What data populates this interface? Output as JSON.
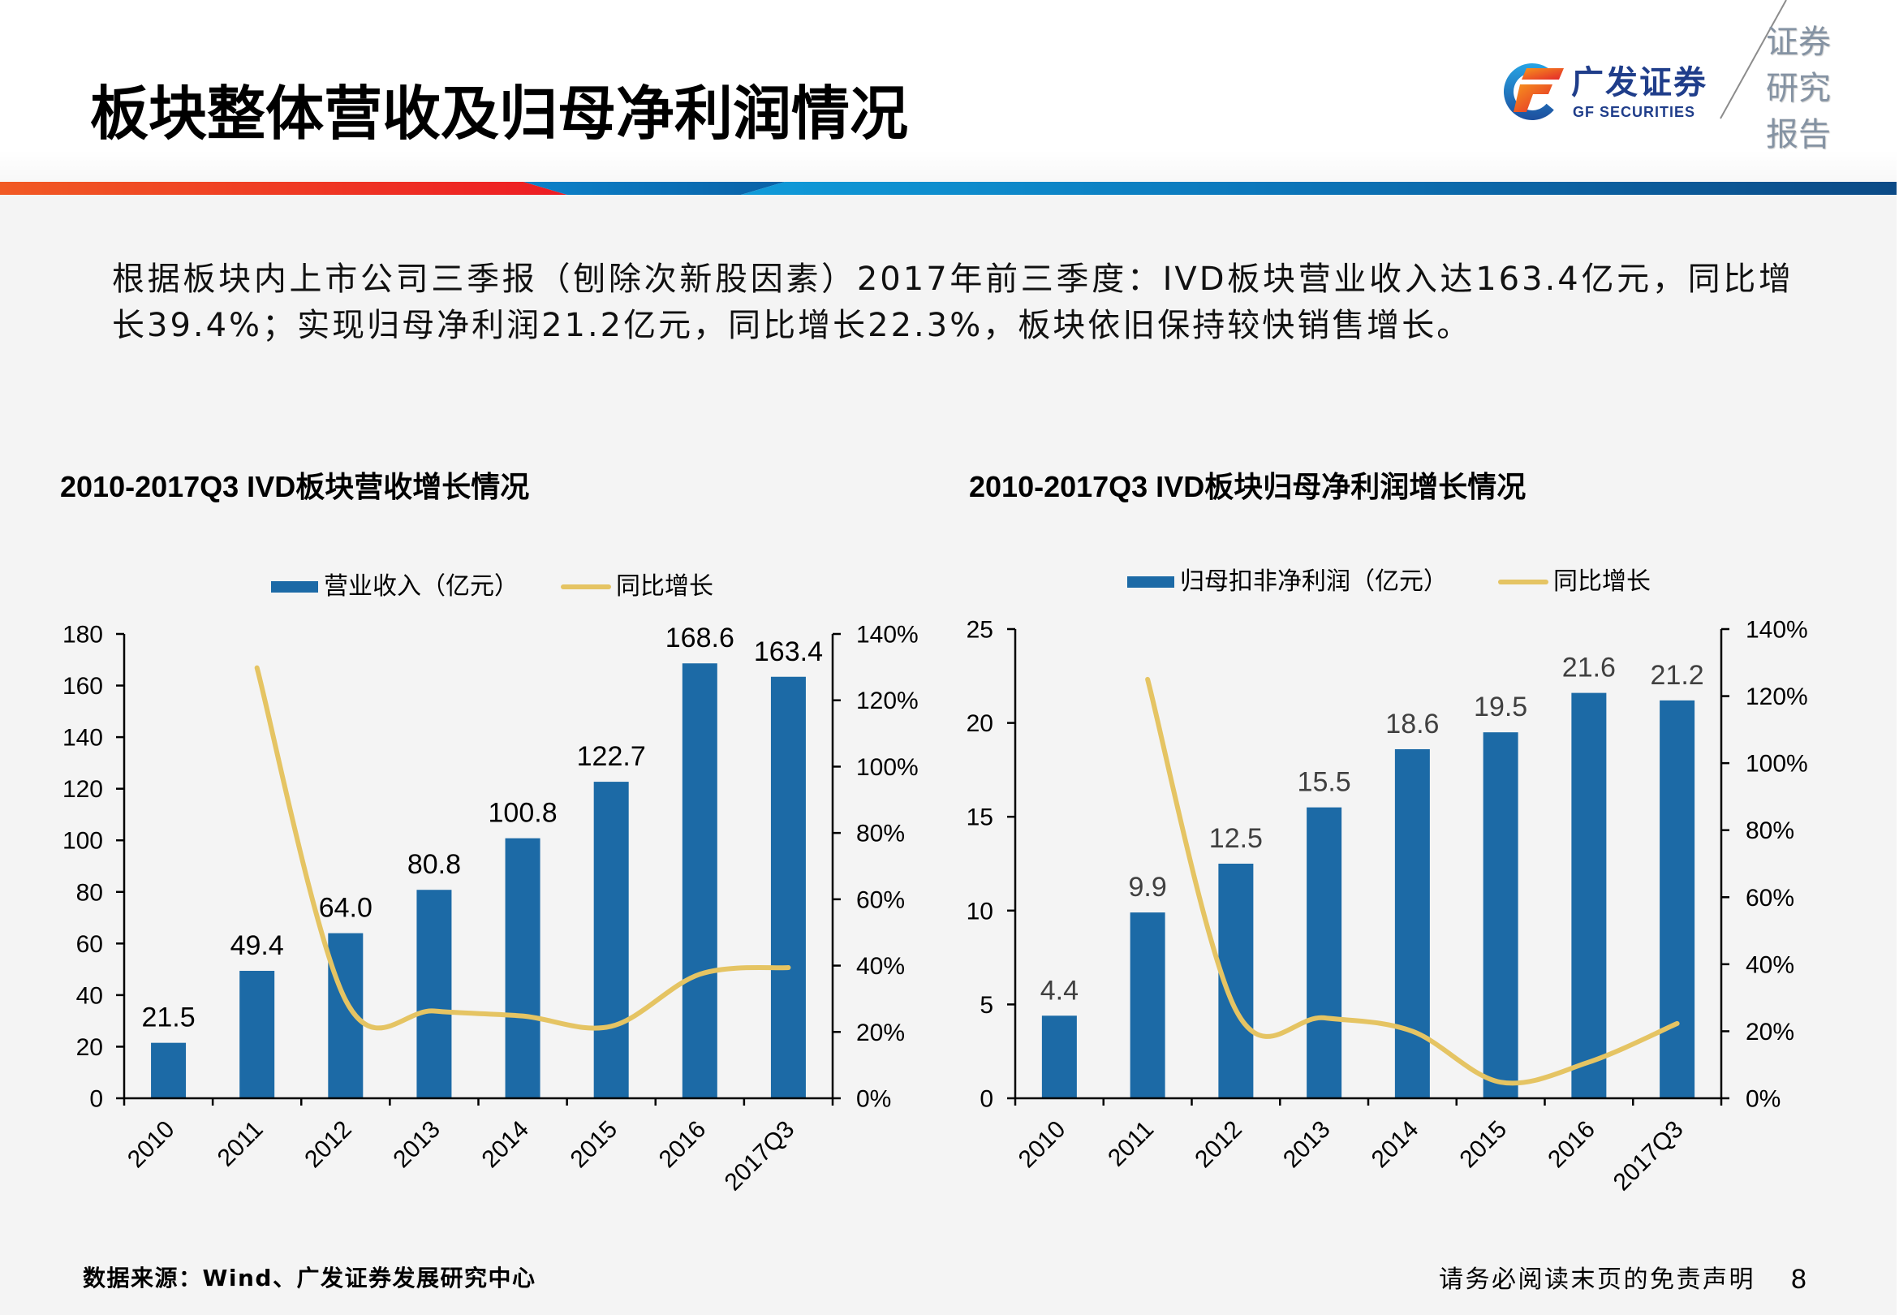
{
  "header": {
    "title": "板块整体营收及归母净利润情况",
    "logo": {
      "icon": "gf-logo-icon",
      "name_cn": "广发证券",
      "name_en": "GF SECURITIES"
    },
    "report_tag": [
      "证券",
      "研究",
      "报告"
    ]
  },
  "summary": "根据板块内上市公司三季报（刨除次新股因素）2017年前三季度：IVD板块营业收入达163.4亿元，同比增长39.4%；实现归母净利润21.2亿元，同比增长22.3%，板块依旧保持较快销售增长。",
  "chart_data": [
    {
      "type": "bar+line",
      "title": "2010-2017Q3 IVD板块营收增长情况",
      "xlabel": "",
      "ylabel": "",
      "categories": [
        "2010",
        "2011",
        "2012",
        "2013",
        "2014",
        "2015",
        "2016",
        "2017Q3"
      ],
      "series": [
        {
          "name": "营业收入（亿元）",
          "type": "bar",
          "axis": "left",
          "values": [
            21.5,
            49.4,
            64.0,
            80.8,
            100.8,
            122.7,
            168.6,
            163.4
          ],
          "labels": [
            "21.5",
            "49.4",
            "64.0",
            "80.8",
            "100.8",
            "122.7",
            "168.6",
            "163.4"
          ]
        },
        {
          "name": "同比增长",
          "type": "line",
          "axis": "right",
          "smooth": true,
          "unit": "%",
          "values": [
            null,
            129.8,
            29.6,
            26.3,
            24.8,
            21.7,
            37.4,
            39.4
          ]
        }
      ],
      "y_left": {
        "min": 0,
        "max": 180,
        "step": 20,
        "tick_labels": [
          "0",
          "20",
          "40",
          "60",
          "80",
          "100",
          "120",
          "140",
          "160",
          "180"
        ]
      },
      "y_right": {
        "min": 0,
        "max": 140,
        "step": 20,
        "tick_labels": [
          "0%",
          "20%",
          "40%",
          "60%",
          "80%",
          "100%",
          "120%",
          "140%"
        ]
      },
      "legend_position": "top-center",
      "grid": false,
      "colors": {
        "bar": "#1c6aa6",
        "line": "#e5c463",
        "data_label": "#000000"
      }
    },
    {
      "type": "bar+line",
      "title": "2010-2017Q3 IVD板块归母净利润增长情况",
      "xlabel": "",
      "ylabel": "",
      "categories": [
        "2010",
        "2011",
        "2012",
        "2013",
        "2014",
        "2015",
        "2016",
        "2017Q3"
      ],
      "series": [
        {
          "name": "归母扣非净利润（亿元）",
          "type": "bar",
          "axis": "left",
          "values": [
            4.4,
            9.9,
            12.5,
            15.5,
            18.6,
            19.5,
            21.6,
            21.2
          ],
          "labels": [
            "4.4",
            "9.9",
            "12.5",
            "15.5",
            "18.6",
            "19.5",
            "21.6",
            "21.2"
          ]
        },
        {
          "name": "同比增长",
          "type": "line",
          "axis": "right",
          "smooth": true,
          "unit": "%",
          "values": [
            null,
            125.0,
            26.3,
            24.0,
            20.0,
            4.8,
            10.8,
            22.3
          ]
        }
      ],
      "y_left": {
        "min": 0,
        "max": 25,
        "step": 5,
        "tick_labels": [
          "0",
          "5",
          "10",
          "15",
          "20",
          "25"
        ]
      },
      "y_right": {
        "min": 0,
        "max": 140,
        "step": 20,
        "tick_labels": [
          "0%",
          "20%",
          "40%",
          "60%",
          "80%",
          "100%",
          "120%",
          "140%"
        ]
      },
      "legend_position": "top-center",
      "grid": false,
      "colors": {
        "bar": "#1c6aa6",
        "line": "#e5c463",
        "data_label": "#404040"
      }
    }
  ],
  "footer": {
    "source": "数据来源：Wind、广发证券发展研究中心",
    "disclaimer": "请务必阅读末页的免责声明",
    "page_number": "8"
  }
}
